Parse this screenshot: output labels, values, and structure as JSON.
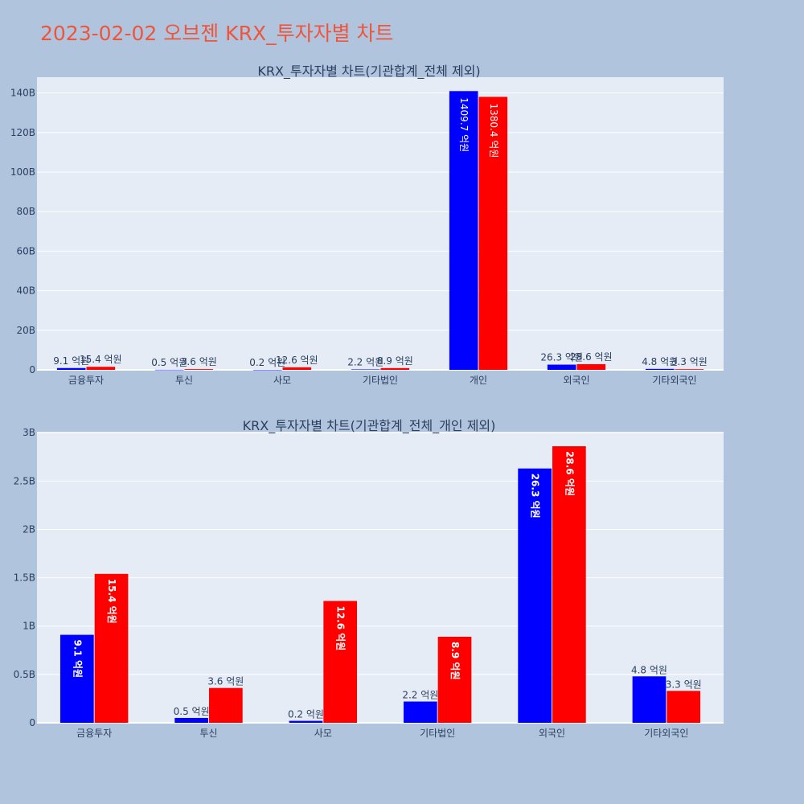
{
  "page_title": "2023-02-02 오브젠 KRX_투자자별 차트",
  "colors": {
    "background": "#b0c4de",
    "plot_bg": "#e5ecf6",
    "title": "#ef553b",
    "series_buy": "#0000ff",
    "series_sell": "#ff0000",
    "text": "#2a3f5f"
  },
  "chart_data": [
    {
      "type": "bar",
      "barmode": "group",
      "title": "KRX_투자자별 차트(기관합계_전체 제외)",
      "categories": [
        "금융투자",
        "투신",
        "사모",
        "기타법인",
        "개인",
        "외국인",
        "기타외국인"
      ],
      "series": [
        {
          "color": "#0000ff",
          "values": [
            0.91,
            0.05,
            0.02,
            0.22,
            140.97,
            2.63,
            0.48
          ],
          "labels": [
            "9.1 억원",
            "0.5 억원",
            "0.2 억원",
            "2.2 억원",
            "1409.7 억원",
            "26.3 억원",
            "4.8 억원"
          ]
        },
        {
          "color": "#ff0000",
          "values": [
            1.54,
            0.36,
            1.26,
            0.89,
            138.04,
            2.86,
            0.33
          ],
          "labels": [
            "15.4 억원",
            "3.6 억원",
            "12.6 억원",
            "8.9 억원",
            "1380.4 억원",
            "28.6 억원",
            "3.3 억원"
          ]
        }
      ],
      "yunit": "B",
      "ylim": [
        0,
        148
      ],
      "yticks": [
        0,
        20,
        40,
        60,
        80,
        100,
        120,
        140
      ],
      "ytick_labels": [
        "0",
        "20B",
        "40B",
        "60B",
        "80B",
        "100B",
        "120B",
        "140B"
      ],
      "grid": true,
      "legend": "none"
    },
    {
      "type": "bar",
      "barmode": "group",
      "title": "KRX_투자자별 차트(기관합계_전체_개인 제외)",
      "categories": [
        "금융투자",
        "투신",
        "사모",
        "기타법인",
        "외국인",
        "기타외국인"
      ],
      "series": [
        {
          "color": "#0000ff",
          "values": [
            0.91,
            0.05,
            0.02,
            0.22,
            2.63,
            0.48
          ],
          "labels": [
            "9.1 억원",
            "0.5 억원",
            "0.2 억원",
            "2.2 억원",
            "26.3 억원",
            "4.8 억원"
          ]
        },
        {
          "color": "#ff0000",
          "values": [
            1.54,
            0.36,
            1.26,
            0.89,
            2.86,
            0.33
          ],
          "labels": [
            "15.4 억원",
            "3.6 억원",
            "12.6 억원",
            "8.9 억원",
            "28.6 억원",
            "3.3 억원"
          ]
        }
      ],
      "yunit": "B",
      "ylim": [
        0,
        3.01
      ],
      "yticks": [
        0,
        0.5,
        1,
        1.5,
        2,
        2.5,
        3
      ],
      "ytick_labels": [
        "0",
        "0.5B",
        "1B",
        "1.5B",
        "2B",
        "2.5B",
        "3B"
      ],
      "grid": true,
      "legend": "none"
    }
  ]
}
